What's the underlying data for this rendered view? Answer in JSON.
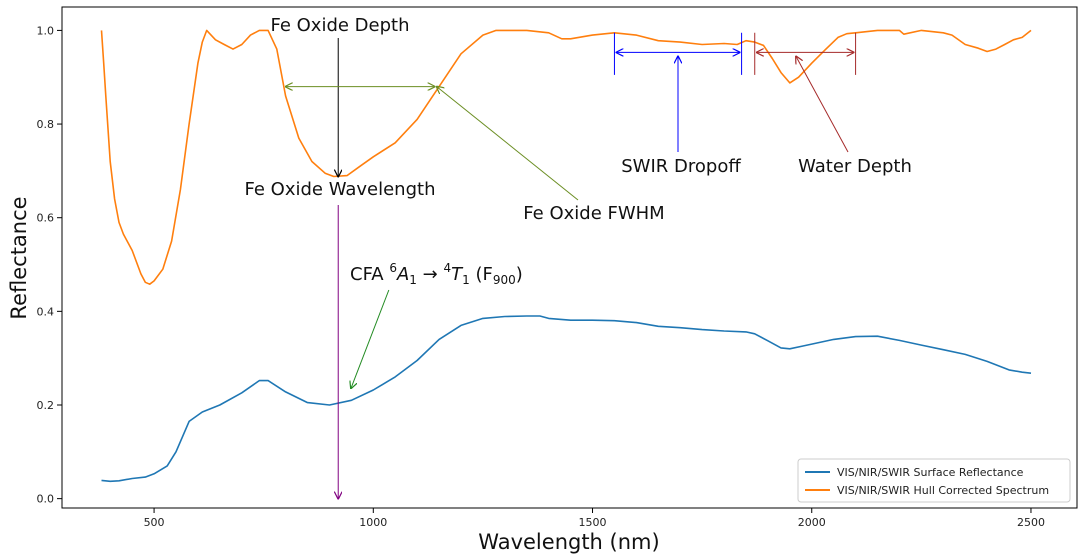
{
  "chart_data": {
    "type": "line",
    "title": "",
    "xlabel": "Wavelength (nm)",
    "ylabel": "Reflectance",
    "xlim": [
      290,
      2605
    ],
    "ylim": [
      -0.02,
      1.05
    ],
    "xticks": [
      500,
      1000,
      1500,
      2000,
      2500
    ],
    "yticks": [
      0.0,
      0.2,
      0.4,
      0.6,
      0.8,
      1.0
    ],
    "xtick_labels": [
      "500",
      "1000",
      "1500",
      "2000",
      "2500"
    ],
    "ytick_labels": [
      "0.0",
      "0.2",
      "0.4",
      "0.6",
      "0.8",
      "1.0"
    ],
    "grid": false,
    "legend_position": "lower-right",
    "colors": {
      "surface": "#1f77b4",
      "hull": "#ff7f0e",
      "fe_depth": "#000000",
      "fe_wavelength": "#800080",
      "cfa": "#228b22",
      "fwhm": "#6b8e23",
      "swir": "#0000ff",
      "water": "#a52a2a"
    },
    "series": [
      {
        "name": "VIS/NIR/SWIR Surface Reflectance",
        "x": [
          380,
          400,
          420,
          450,
          480,
          500,
          530,
          550,
          580,
          610,
          650,
          700,
          740,
          760,
          800,
          850,
          900,
          950,
          1000,
          1050,
          1100,
          1150,
          1200,
          1250,
          1300,
          1350,
          1380,
          1400,
          1450,
          1500,
          1550,
          1600,
          1650,
          1700,
          1750,
          1800,
          1850,
          1870,
          1900,
          1930,
          1950,
          1980,
          2000,
          2050,
          2100,
          2150,
          2200,
          2250,
          2300,
          2350,
          2400,
          2450,
          2480,
          2500
        ],
        "values": [
          0.039,
          0.037,
          0.038,
          0.043,
          0.046,
          0.053,
          0.07,
          0.1,
          0.165,
          0.185,
          0.2,
          0.226,
          0.252,
          0.252,
          0.228,
          0.205,
          0.2,
          0.21,
          0.232,
          0.26,
          0.295,
          0.34,
          0.37,
          0.385,
          0.389,
          0.39,
          0.39,
          0.385,
          0.381,
          0.381,
          0.38,
          0.376,
          0.368,
          0.365,
          0.361,
          0.358,
          0.356,
          0.352,
          0.337,
          0.322,
          0.32,
          0.326,
          0.33,
          0.34,
          0.346,
          0.347,
          0.338,
          0.328,
          0.318,
          0.308,
          0.293,
          0.275,
          0.27,
          0.268
        ]
      },
      {
        "name": "VIS/NIR/SWIR Hull Corrected Spectrum",
        "x": [
          380,
          385,
          390,
          400,
          410,
          420,
          430,
          450,
          470,
          480,
          490,
          500,
          520,
          540,
          560,
          580,
          600,
          610,
          620,
          640,
          660,
          680,
          700,
          720,
          740,
          760,
          780,
          800,
          830,
          860,
          890,
          910,
          940,
          970,
          1000,
          1050,
          1100,
          1150,
          1200,
          1250,
          1280,
          1300,
          1350,
          1400,
          1430,
          1450,
          1500,
          1550,
          1600,
          1650,
          1700,
          1750,
          1800,
          1830,
          1850,
          1870,
          1890,
          1910,
          1930,
          1950,
          1970,
          2000,
          2030,
          2060,
          2080,
          2100,
          2150,
          2200,
          2210,
          2250,
          2300,
          2320,
          2350,
          2380,
          2400,
          2420,
          2440,
          2460,
          2480,
          2500
        ],
        "values": [
          1.0,
          0.93,
          0.86,
          0.72,
          0.64,
          0.59,
          0.565,
          0.53,
          0.48,
          0.462,
          0.458,
          0.465,
          0.49,
          0.55,
          0.66,
          0.8,
          0.93,
          0.975,
          1.0,
          0.98,
          0.97,
          0.96,
          0.97,
          0.99,
          1.0,
          1.0,
          0.96,
          0.86,
          0.77,
          0.72,
          0.695,
          0.688,
          0.69,
          0.71,
          0.73,
          0.76,
          0.81,
          0.88,
          0.95,
          0.99,
          1.0,
          1.0,
          1.0,
          0.995,
          0.982,
          0.982,
          0.99,
          0.995,
          0.99,
          0.978,
          0.975,
          0.97,
          0.972,
          0.97,
          0.978,
          0.975,
          0.968,
          0.94,
          0.91,
          0.888,
          0.9,
          0.93,
          0.958,
          0.985,
          0.993,
          0.995,
          1.0,
          1.0,
          0.992,
          1.0,
          0.995,
          0.99,
          0.97,
          0.962,
          0.955,
          0.96,
          0.97,
          0.98,
          0.985,
          1.0
        ]
      }
    ],
    "annotations": {
      "fe_oxide_depth": "Fe Oxide Depth",
      "fe_oxide_wavelength": "Fe Oxide Wavelength",
      "fe_oxide_fwhm": "Fe Oxide FWHM",
      "swir_dropoff": "SWIR Dropoff",
      "water_depth": "Water Depth",
      "cfa_prefix": "CFA ",
      "cfa_sup1": "6",
      "cfa_a": "A",
      "cfa_sub1": "1",
      "cfa_arrow": " → ",
      "cfa_sup2": "4",
      "cfa_t": "T",
      "cfa_sub2": "1",
      "cfa_f": " (F",
      "cfa_sub3": "900",
      "cfa_close": ")"
    },
    "markers": {
      "fe_wavelength_x": 920,
      "fe_depth_top": 1.0,
      "fe_depth_bottom": 0.688,
      "fe_wavelength_top": 0.63,
      "fe_wavelength_bottom": 0.0,
      "fwhm_x": [
        800,
        1140
      ],
      "fwhm_y": 0.88,
      "fwhm_label_anchor": [
        1130,
        0.58
      ],
      "swir_x": [
        1550,
        1840
      ],
      "swir_y": 0.953,
      "swir_tick_top": 0.995,
      "swir_tick_bottom": 0.905,
      "swir_label_anchor": [
        1680,
        0.725
      ],
      "water_x": [
        1870,
        2100
      ],
      "water_y": 0.953,
      "water_tick_top": 0.995,
      "water_tick_bottom": 0.905,
      "water_label_anchor": [
        2090,
        0.725
      ],
      "cfa_from": [
        1040,
        0.455
      ],
      "cfa_to": [
        940,
        0.24
      ]
    }
  }
}
